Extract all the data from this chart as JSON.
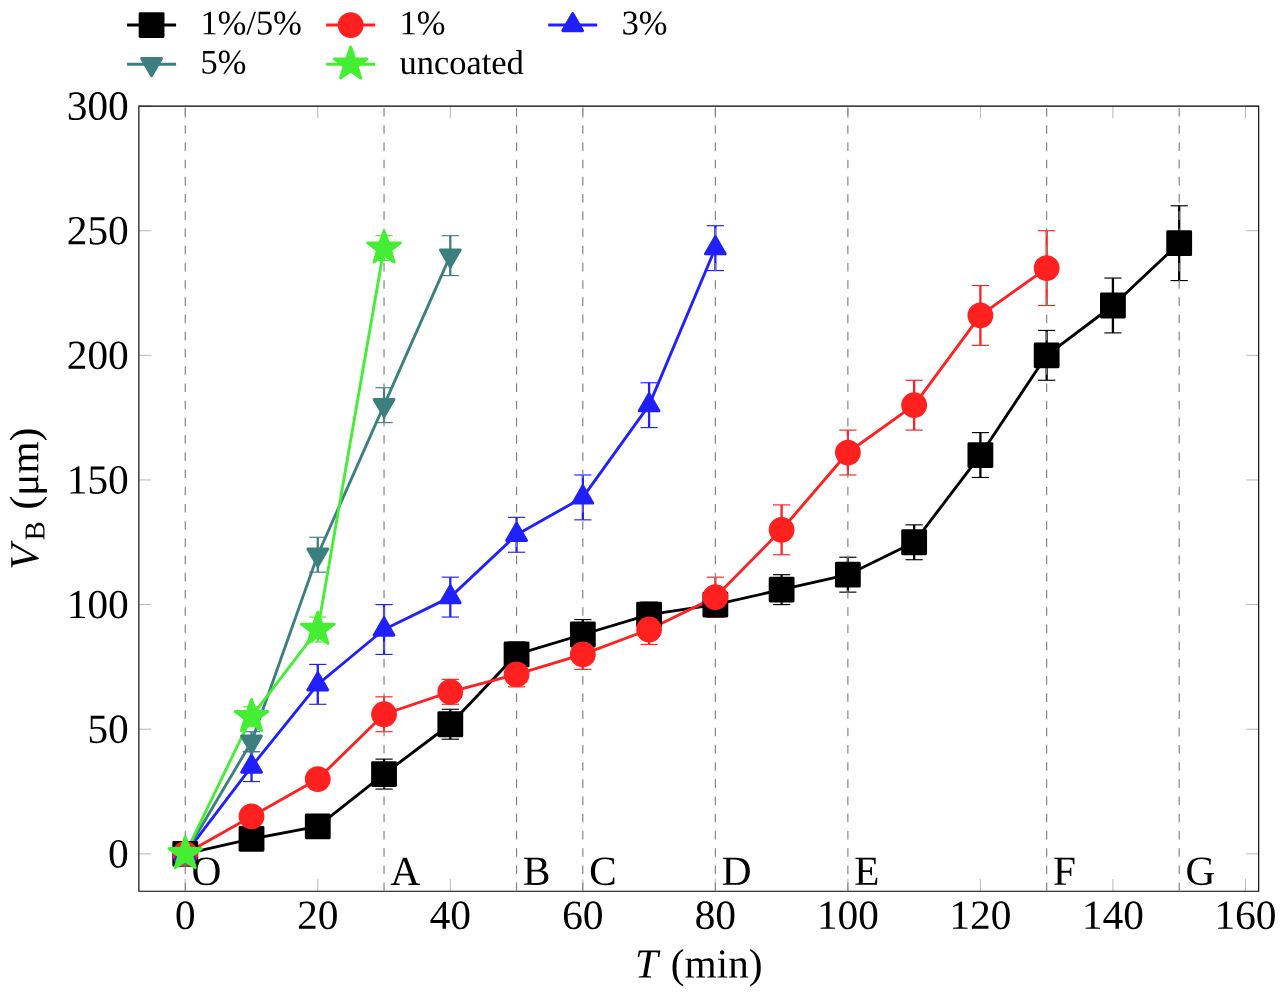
{
  "chart_data": {
    "type": "line",
    "xlabel": "*T* (min)",
    "ylabel": "*V*$_{B}$ (μm)",
    "xlim": [
      -7,
      162
    ],
    "ylim": [
      -15,
      300
    ],
    "xticks": [
      0,
      20,
      40,
      60,
      80,
      100,
      120,
      140,
      160
    ],
    "yticks": [
      0,
      50,
      100,
      150,
      200,
      250,
      300
    ],
    "grid": false,
    "legend": "top left",
    "series": [
      {
        "name": "1%/5%",
        "color": "#000000",
        "marker": "square",
        "x": [
          0,
          10,
          20,
          30,
          40,
          50,
          60,
          70,
          80,
          90,
          100,
          110,
          120,
          130,
          140,
          150
        ],
        "values": [
          0,
          6,
          11,
          32,
          52,
          80,
          88,
          96,
          100,
          106,
          112,
          125,
          160,
          200,
          220,
          245
        ],
        "errors": [
          null,
          3,
          3,
          6,
          6,
          5,
          6,
          5,
          5,
          6,
          7,
          7,
          9,
          10,
          11,
          15
        ]
      },
      {
        "name": "1%",
        "color": "#ff2020",
        "marker": "circle",
        "x": [
          0,
          10,
          20,
          30,
          40,
          50,
          60,
          70,
          80,
          90,
          100,
          110,
          120,
          130
        ],
        "values": [
          0,
          15,
          30,
          56,
          65,
          72,
          80,
          90,
          103,
          130,
          161,
          180,
          216,
          235
        ],
        "errors": [
          null,
          3,
          3,
          7,
          5,
          5,
          6,
          6,
          8,
          10,
          9,
          10,
          12,
          15
        ]
      },
      {
        "name": "3%",
        "color": "#2020ff",
        "marker": "triangle",
        "x": [
          0,
          10,
          20,
          30,
          40,
          50,
          60,
          70,
          80
        ],
        "values": [
          0,
          35,
          68,
          90,
          103,
          128,
          143,
          180,
          243
        ],
        "errors": [
          null,
          6,
          8,
          10,
          8,
          7,
          9,
          9,
          9
        ]
      },
      {
        "name": "5%",
        "color": "#3d7f7f",
        "marker": "triangle_down",
        "x": [
          0,
          10,
          20,
          30,
          40
        ],
        "values": [
          0,
          45,
          120,
          180,
          240
        ],
        "errors": [
          null,
          4,
          7,
          7,
          8
        ]
      },
      {
        "name": "uncoated",
        "color": "#44ee33",
        "marker": "star",
        "x": [
          0,
          10,
          20,
          30
        ],
        "values": [
          0,
          55,
          90,
          243
        ],
        "errors": [
          null,
          4,
          5,
          5
        ]
      }
    ],
    "ref_lines": [
      {
        "axis": "x",
        "value": 0,
        "label": "O",
        "line_style": "dashed"
      },
      {
        "axis": "x",
        "value": 30,
        "label": "A",
        "line_style": "dashed"
      },
      {
        "axis": "x",
        "value": 50,
        "label": "B",
        "line_style": "dashed"
      },
      {
        "axis": "x",
        "value": 60,
        "label": "C",
        "line_style": "dashed"
      },
      {
        "axis": "x",
        "value": 80,
        "label": "D",
        "line_style": "dashed"
      },
      {
        "axis": "x",
        "value": 100,
        "label": "E",
        "line_style": "dashed"
      },
      {
        "axis": "x",
        "value": 130,
        "label": "F",
        "line_style": "dashed"
      },
      {
        "axis": "x",
        "value": 150,
        "label": "G",
        "line_style": "dashed"
      }
    ]
  }
}
